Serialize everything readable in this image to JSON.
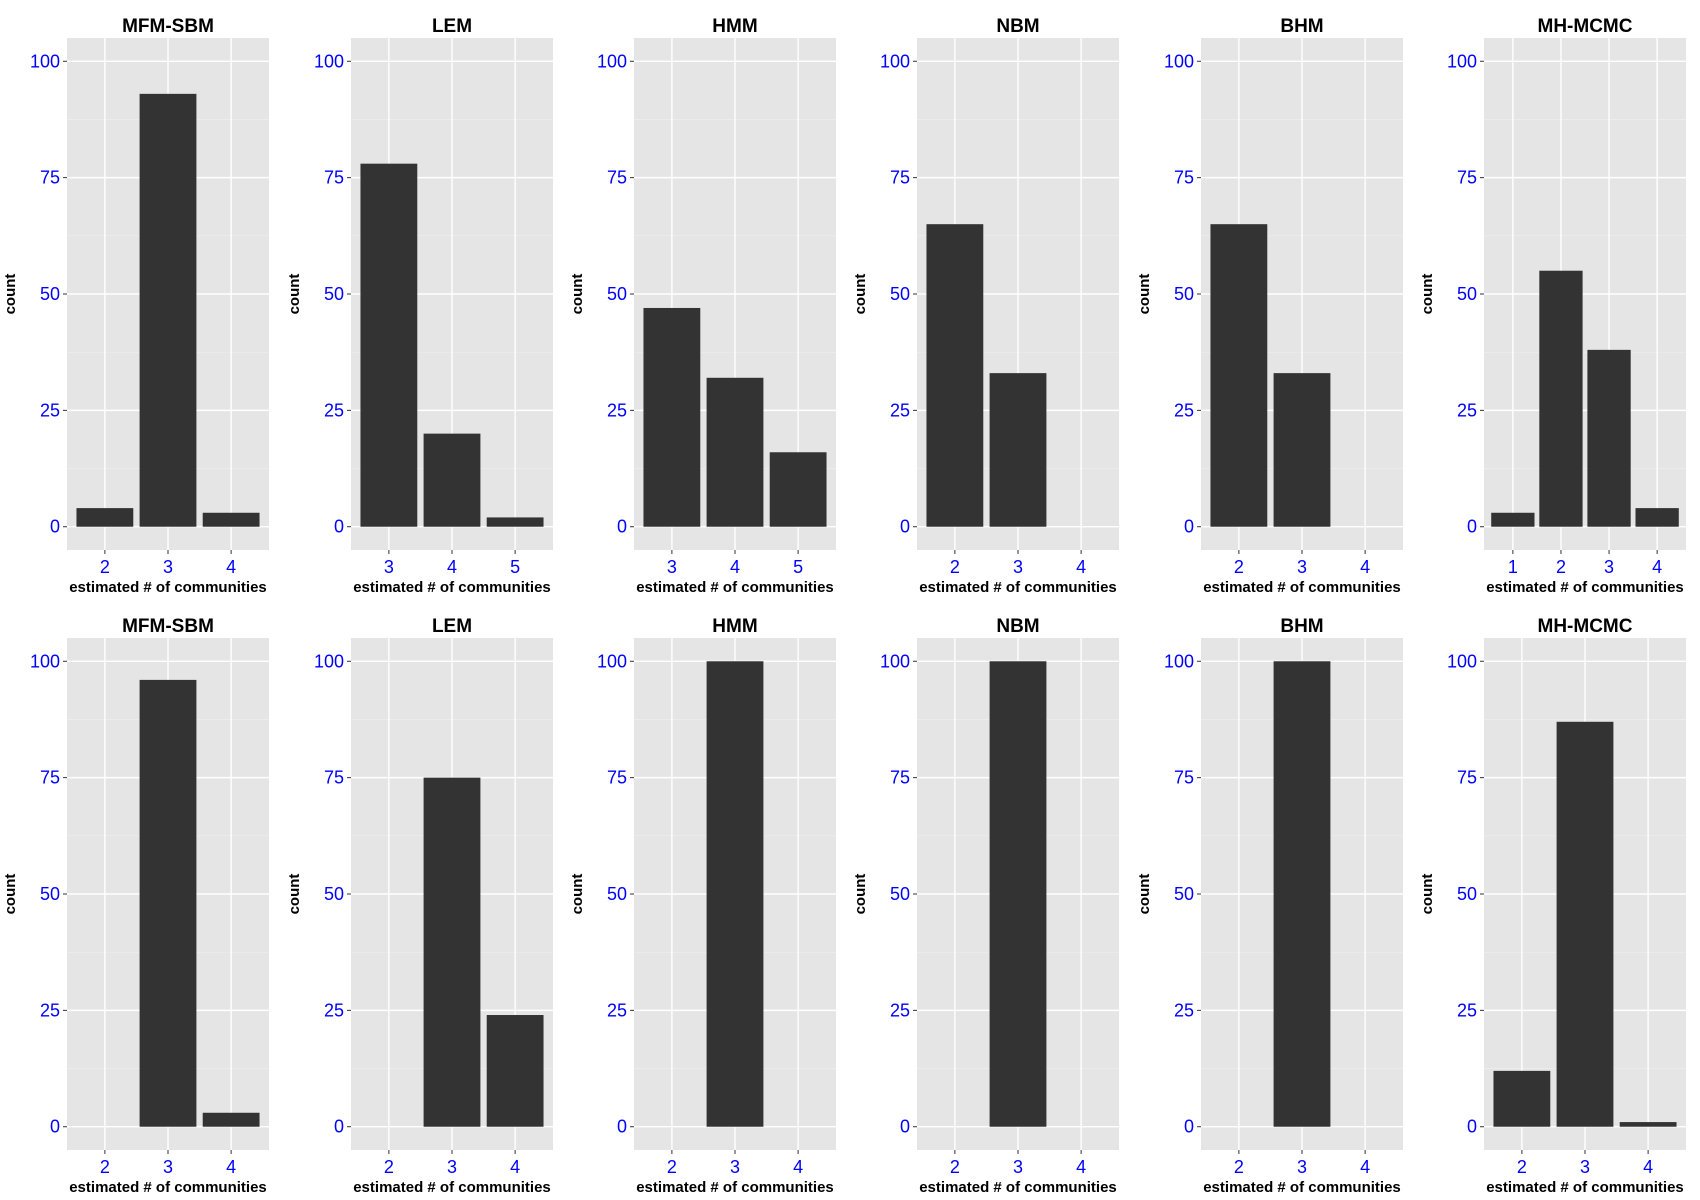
{
  "chart_data": [
    {
      "type": "bar",
      "title": "MFM-SBM",
      "xlabel": "estimated # of communities",
      "ylabel": "count",
      "categories": [
        "2",
        "3",
        "4"
      ],
      "values": [
        4,
        93,
        3
      ],
      "ylim": [
        0,
        100
      ],
      "yticks": [
        0,
        25,
        50,
        75,
        100
      ]
    },
    {
      "type": "bar",
      "title": "LEM",
      "xlabel": "estimated # of communities",
      "ylabel": "count",
      "categories": [
        "3",
        "4",
        "5"
      ],
      "values": [
        78,
        20,
        2
      ],
      "ylim": [
        0,
        100
      ],
      "yticks": [
        0,
        25,
        50,
        75,
        100
      ]
    },
    {
      "type": "bar",
      "title": "HMM",
      "xlabel": "estimated # of communities",
      "ylabel": "count",
      "categories": [
        "3",
        "4",
        "5"
      ],
      "values": [
        47,
        32,
        16
      ],
      "ylim": [
        0,
        100
      ],
      "yticks": [
        0,
        25,
        50,
        75,
        100
      ]
    },
    {
      "type": "bar",
      "title": "NBM",
      "xlabel": "estimated # of communities",
      "ylabel": "count",
      "categories": [
        "2",
        "3",
        "4"
      ],
      "values": [
        65,
        33,
        0
      ],
      "ylim": [
        0,
        100
      ],
      "yticks": [
        0,
        25,
        50,
        75,
        100
      ]
    },
    {
      "type": "bar",
      "title": "BHM",
      "xlabel": "estimated # of communities",
      "ylabel": "count",
      "categories": [
        "2",
        "3",
        "4"
      ],
      "values": [
        65,
        33,
        0
      ],
      "ylim": [
        0,
        100
      ],
      "yticks": [
        0,
        25,
        50,
        75,
        100
      ]
    },
    {
      "type": "bar",
      "title": "MH-MCMC",
      "xlabel": "estimated # of communities",
      "ylabel": "count",
      "categories": [
        "1",
        "2",
        "3",
        "4"
      ],
      "values": [
        3,
        55,
        38,
        4
      ],
      "ylim": [
        0,
        100
      ],
      "yticks": [
        0,
        25,
        50,
        75,
        100
      ]
    },
    {
      "type": "bar",
      "title": "MFM-SBM",
      "xlabel": "estimated # of communities",
      "ylabel": "count",
      "categories": [
        "2",
        "3",
        "4"
      ],
      "values": [
        0,
        96,
        3
      ],
      "ylim": [
        0,
        100
      ],
      "yticks": [
        0,
        25,
        50,
        75,
        100
      ]
    },
    {
      "type": "bar",
      "title": "LEM",
      "xlabel": "estimated # of communities",
      "ylabel": "count",
      "categories": [
        "2",
        "3",
        "4"
      ],
      "values": [
        0,
        75,
        24
      ],
      "ylim": [
        0,
        100
      ],
      "yticks": [
        0,
        25,
        50,
        75,
        100
      ]
    },
    {
      "type": "bar",
      "title": "HMM",
      "xlabel": "estimated # of communities",
      "ylabel": "count",
      "categories": [
        "2",
        "3",
        "4"
      ],
      "values": [
        0,
        100,
        0
      ],
      "ylim": [
        0,
        100
      ],
      "yticks": [
        0,
        25,
        50,
        75,
        100
      ]
    },
    {
      "type": "bar",
      "title": "NBM",
      "xlabel": "estimated # of communities",
      "ylabel": "count",
      "categories": [
        "2",
        "3",
        "4"
      ],
      "values": [
        0,
        100,
        0
      ],
      "ylim": [
        0,
        100
      ],
      "yticks": [
        0,
        25,
        50,
        75,
        100
      ]
    },
    {
      "type": "bar",
      "title": "BHM",
      "xlabel": "estimated # of communities",
      "ylabel": "count",
      "categories": [
        "2",
        "3",
        "4"
      ],
      "values": [
        0,
        100,
        0
      ],
      "ylim": [
        0,
        100
      ],
      "yticks": [
        0,
        25,
        50,
        75,
        100
      ]
    },
    {
      "type": "bar",
      "title": "MH-MCMC",
      "xlabel": "estimated # of communities",
      "ylabel": "count",
      "categories": [
        "2",
        "3",
        "4"
      ],
      "values": [
        12,
        87,
        1
      ],
      "ylim": [
        0,
        100
      ],
      "yticks": [
        0,
        25,
        50,
        75,
        100
      ]
    }
  ],
  "colors": {
    "bar": "#333333",
    "panel": "#e5e5e5",
    "tick_labels": "#0000ff"
  }
}
